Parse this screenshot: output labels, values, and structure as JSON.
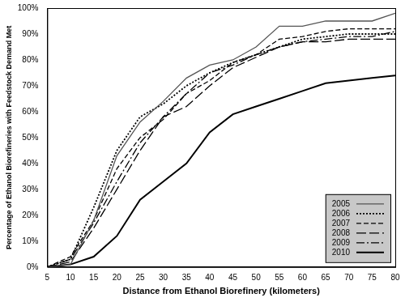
{
  "chart_data": {
    "type": "line",
    "x_label": "Distance from Ethanol Biorefinery (kilometers)",
    "y_label": "Percentage of Ethanol Biorefineries with Feedstock Demand Met",
    "x": [
      5,
      10,
      15,
      20,
      25,
      30,
      35,
      40,
      45,
      50,
      55,
      60,
      65,
      70,
      75,
      80
    ],
    "xlim": [
      5,
      80
    ],
    "xticks": [
      5,
      10,
      15,
      20,
      25,
      30,
      35,
      40,
      45,
      50,
      55,
      60,
      65,
      70,
      75,
      80
    ],
    "ylim": [
      0,
      100
    ],
    "yticks": [
      {
        "value": 0,
        "label": "0%"
      },
      {
        "value": 10,
        "label": "10%"
      },
      {
        "value": 20,
        "label": "20%"
      },
      {
        "value": 30,
        "label": "30%"
      },
      {
        "value": 40,
        "label": "40%"
      },
      {
        "value": 50,
        "label": "50%"
      },
      {
        "value": 60,
        "label": "60%"
      },
      {
        "value": 70,
        "label": "70%"
      },
      {
        "value": 80,
        "label": "80%"
      },
      {
        "value": 90,
        "label": "90%"
      },
      {
        "value": 100,
        "label": "100%"
      }
    ],
    "grid": false,
    "legend": "bottom right",
    "series": [
      {
        "name": "2005",
        "color": "#555555",
        "line_style": "solid",
        "values": [
          0,
          1,
          18,
          43,
          56,
          64,
          73,
          78,
          80,
          85,
          93,
          93,
          95,
          95,
          95,
          98
        ]
      },
      {
        "name": "2006",
        "color": "#000000",
        "line_style": "dotted",
        "values": [
          0,
          3,
          23,
          45,
          58,
          63,
          70,
          75,
          79,
          82,
          85,
          88,
          89,
          90,
          90,
          90
        ]
      },
      {
        "name": "2007",
        "color": "#000000",
        "line_style": "dashed",
        "values": [
          0,
          4,
          18,
          38,
          50,
          57,
          67,
          72,
          79,
          82,
          88,
          89,
          91,
          92,
          92,
          92
        ]
      },
      {
        "name": "2008",
        "color": "#000000",
        "line_style": "longdash",
        "values": [
          0,
          2,
          15,
          30,
          45,
          58,
          62,
          70,
          77,
          81,
          85,
          87,
          87,
          88,
          88,
          88
        ]
      },
      {
        "name": "2009",
        "color": "#000000",
        "line_style": "dashdot",
        "values": [
          0,
          3,
          17,
          33,
          48,
          58,
          67,
          75,
          78,
          82,
          85,
          87,
          88,
          89,
          89,
          91
        ]
      },
      {
        "name": "2010",
        "color": "#000000",
        "line_style": "solid",
        "values": [
          0,
          1,
          4,
          12,
          26,
          33,
          40,
          52,
          59,
          62,
          65,
          68,
          71,
          72,
          73,
          74
        ]
      }
    ]
  }
}
